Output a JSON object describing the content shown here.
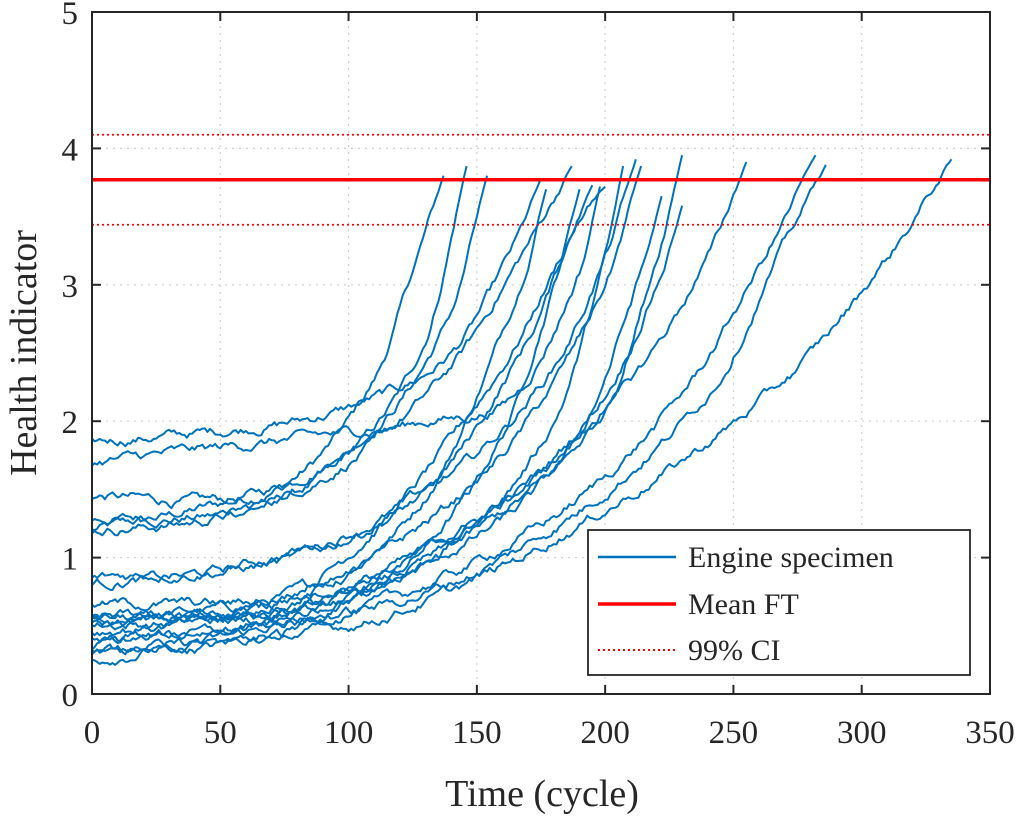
{
  "chart_data": {
    "type": "line",
    "xlabel": "Time (cycle)",
    "ylabel": "Health indicator",
    "xlim": [
      0,
      350
    ],
    "ylim": [
      0,
      5
    ],
    "xticks": [
      0,
      50,
      100,
      150,
      200,
      250,
      300,
      350
    ],
    "yticks": [
      0,
      1,
      2,
      3,
      4,
      5
    ],
    "xtick_labels": [
      "0",
      "50",
      "100",
      "150",
      "200",
      "250",
      "300",
      "350"
    ],
    "ytick_labels": [
      "0",
      "1",
      "2",
      "3",
      "4",
      "5"
    ],
    "grid": true,
    "legend_position": "bottom-right",
    "colors": {
      "specimen": "#0072BD",
      "mean": "#FF0000",
      "ci": "#FF0000"
    },
    "legend": [
      {
        "label": "Engine specimen",
        "style": "solid-blue"
      },
      {
        "label": "Mean FT",
        "style": "solid-red"
      },
      {
        "label": "99% CI",
        "style": "dotted-red"
      }
    ],
    "reference_lines": [
      {
        "name": "Mean FT",
        "y": 3.77,
        "style": "solid"
      },
      {
        "name": "99% CI",
        "y": 4.1,
        "style": "dotted"
      },
      {
        "name": "99% CI",
        "y": 3.44,
        "style": "dotted"
      }
    ],
    "series": [
      {
        "x": [
          0,
          40,
          80,
          110,
          125,
          137
        ],
        "y": [
          1.2,
          1.35,
          1.6,
          2.3,
          3.1,
          3.8
        ]
      },
      {
        "x": [
          0,
          60,
          100,
          130,
          146
        ],
        "y": [
          1.28,
          1.35,
          1.75,
          2.6,
          3.87
        ]
      },
      {
        "x": [
          0,
          60,
          110,
          140,
          154
        ],
        "y": [
          1.45,
          1.45,
          1.95,
          2.8,
          3.8
        ]
      },
      {
        "x": [
          0,
          60,
          100,
          140,
          165,
          175
        ],
        "y": [
          1.85,
          1.95,
          2.1,
          2.5,
          3.3,
          3.78
        ]
      },
      {
        "x": [
          0,
          80,
          130,
          165,
          177
        ],
        "y": [
          0.55,
          0.75,
          1.45,
          2.9,
          3.7
        ]
      },
      {
        "x": [
          0,
          50,
          100,
          140,
          170,
          187
        ],
        "y": [
          1.2,
          1.3,
          1.7,
          2.4,
          3.3,
          3.87
        ]
      },
      {
        "x": [
          0,
          60,
          120,
          160,
          180,
          190
        ],
        "y": [
          0.3,
          0.4,
          0.9,
          1.9,
          3.0,
          3.7
        ]
      },
      {
        "x": [
          0,
          60,
          110,
          160,
          185,
          195
        ],
        "y": [
          0.5,
          0.6,
          1.2,
          2.4,
          3.3,
          3.73
        ]
      },
      {
        "x": [
          0,
          70,
          130,
          165,
          190,
          198
        ],
        "y": [
          1.7,
          1.85,
          2.0,
          2.2,
          3.1,
          3.72
        ]
      },
      {
        "x": [
          0,
          60,
          130,
          170,
          190,
          200
        ],
        "y": [
          0.8,
          0.95,
          1.5,
          2.6,
          3.5,
          3.72
        ]
      },
      {
        "x": [
          0,
          70,
          140,
          180,
          200,
          207
        ],
        "y": [
          0.25,
          0.5,
          1.1,
          2.0,
          3.2,
          3.87
        ]
      },
      {
        "x": [
          0,
          80,
          140,
          180,
          200,
          212
        ],
        "y": [
          0.85,
          1.0,
          1.6,
          2.4,
          3.2,
          3.92
        ]
      },
      {
        "x": [
          0,
          80,
          140,
          170,
          200,
          214
        ],
        "y": [
          0.5,
          0.7,
          1.4,
          2.0,
          3.0,
          3.87
        ]
      },
      {
        "x": [
          0,
          80,
          150,
          190,
          215,
          222
        ],
        "y": [
          0.55,
          0.6,
          1.15,
          1.9,
          3.15,
          3.65
        ]
      },
      {
        "x": [
          0,
          80,
          150,
          200,
          220,
          230
        ],
        "y": [
          0.35,
          0.6,
          1.2,
          2.1,
          3.2,
          3.95
        ]
      },
      {
        "x": [
          0,
          80,
          160,
          200,
          222,
          230
        ],
        "y": [
          0.45,
          0.65,
          1.4,
          2.2,
          3.1,
          3.58
        ]
      },
      {
        "x": [
          0,
          90,
          160,
          210,
          240,
          255
        ],
        "y": [
          0.65,
          0.75,
          1.4,
          2.3,
          3.2,
          3.9
        ]
      },
      {
        "x": [
          0,
          100,
          180,
          230,
          265,
          282
        ],
        "y": [
          0.4,
          0.6,
          1.3,
          2.2,
          3.3,
          3.95
        ]
      },
      {
        "x": [
          0,
          100,
          170,
          240,
          270,
          286
        ],
        "y": [
          0.55,
          0.6,
          1.1,
          2.2,
          3.3,
          3.88
        ]
      },
      {
        "x": [
          0,
          110,
          200,
          270,
          310,
          335
        ],
        "y": [
          0.3,
          0.55,
          1.35,
          2.3,
          3.2,
          3.92
        ]
      }
    ]
  }
}
